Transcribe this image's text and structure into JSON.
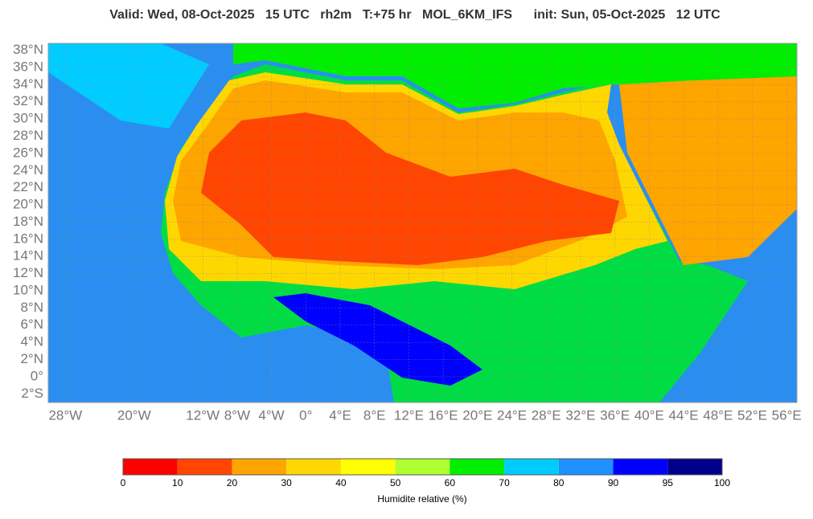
{
  "header": {
    "title": "Valid: Wed, 08-Oct-2025   15 UTC   rh2m   T:+75 hr   MOL_6KM_IFS      init: Sun, 05-Oct-2025   12 UTC"
  },
  "map": {
    "lon_range": [
      -30,
      57.2
    ],
    "lat_range": [
      -3,
      38.8
    ],
    "lat_ticks": [
      {
        "value": 38,
        "label": "38°N"
      },
      {
        "value": 36,
        "label": "36°N"
      },
      {
        "value": 34,
        "label": "34°N"
      },
      {
        "value": 32,
        "label": "32°N"
      },
      {
        "value": 30,
        "label": "30°N"
      },
      {
        "value": 28,
        "label": "28°N"
      },
      {
        "value": 26,
        "label": "26°N"
      },
      {
        "value": 24,
        "label": "24°N"
      },
      {
        "value": 22,
        "label": "22°N"
      },
      {
        "value": 20,
        "label": "20°N"
      },
      {
        "value": 18,
        "label": "18°N"
      },
      {
        "value": 16,
        "label": "16°N"
      },
      {
        "value": 14,
        "label": "14°N"
      },
      {
        "value": 12,
        "label": "12°N"
      },
      {
        "value": 10,
        "label": "10°N"
      },
      {
        "value": 8,
        "label": "8°N"
      },
      {
        "value": 6,
        "label": "6°N"
      },
      {
        "value": 4,
        "label": "4°N"
      },
      {
        "value": 2,
        "label": "2°N"
      },
      {
        "value": 0,
        "label": "0°"
      },
      {
        "value": -2,
        "label": "2°S"
      }
    ],
    "lon_ticks": [
      {
        "value": -28,
        "label": "28°W"
      },
      {
        "value": -20,
        "label": "20°W"
      },
      {
        "value": -12,
        "label": "12°W"
      },
      {
        "value": -8,
        "label": "8°W"
      },
      {
        "value": -4,
        "label": "4°W"
      },
      {
        "value": 0,
        "label": "0°"
      },
      {
        "value": 4,
        "label": "4°E"
      },
      {
        "value": 8,
        "label": "8°E"
      },
      {
        "value": 12,
        "label": "12°E"
      },
      {
        "value": 16,
        "label": "16°E"
      },
      {
        "value": 20,
        "label": "20°E"
      },
      {
        "value": 24,
        "label": "24°E"
      },
      {
        "value": 28,
        "label": "28°E"
      },
      {
        "value": 32,
        "label": "32°E"
      },
      {
        "value": 36,
        "label": "36°E"
      },
      {
        "value": 40,
        "label": "40°E"
      },
      {
        "value": 44,
        "label": "44°E"
      },
      {
        "value": 48,
        "label": "48°E"
      },
      {
        "value": 52,
        "label": "52°E"
      },
      {
        "value": 56,
        "label": "56°E"
      }
    ]
  },
  "colorbar": {
    "bounds": [
      0,
      10,
      20,
      30,
      40,
      50,
      60,
      70,
      80,
      90,
      95,
      100
    ],
    "colors": [
      "#ff0000",
      "#ff4500",
      "#ffa500",
      "#ffd700",
      "#ffff00",
      "#adff2f",
      "#00ee00",
      "#00ccff",
      "#1e90ff",
      "#0000ff",
      "#00008b"
    ],
    "label": "Humidite relative (%)"
  }
}
